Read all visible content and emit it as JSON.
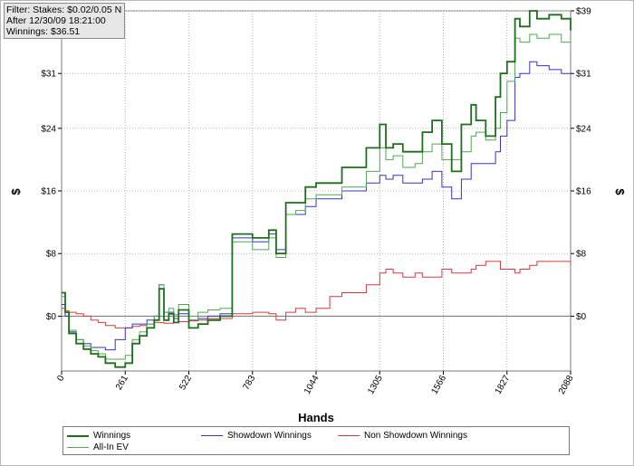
{
  "filter_box": {
    "line1": "Filter: Stakes: $0.02/0.05 NL",
    "line2": "After 12/30/09 18:21:00",
    "line3": "Winnings: $36.51"
  },
  "colors": {
    "winnings": "#1e6e1e",
    "showdown": "#3434c8",
    "non_showdown": "#d23c3c",
    "all_in_ev": "#52a652",
    "zero_line": "#707070",
    "grid": "#b4b4b4"
  },
  "chart_data": {
    "type": "line",
    "xlabel": "Hands",
    "ylabel_left": "$",
    "ylabel_right": "$",
    "xlim": [
      0,
      2088
    ],
    "ylim": [
      -7,
      39
    ],
    "x_ticks": [
      0,
      261,
      522,
      783,
      1044,
      1305,
      1566,
      1827,
      2088
    ],
    "y_ticks": [
      {
        "value": 0,
        "label": "$0"
      },
      {
        "value": 8,
        "label": "$8"
      },
      {
        "value": 16,
        "label": "$16"
      },
      {
        "value": 24,
        "label": "$24"
      },
      {
        "value": 31,
        "label": "$31"
      },
      {
        "value": 39,
        "label": "$39"
      }
    ],
    "grid": "dotted",
    "legend_position": "bottom",
    "series": [
      {
        "name": "Winnings",
        "color_key": "winnings",
        "x": [
          0,
          15,
          30,
          60,
          90,
          120,
          150,
          180,
          220,
          261,
          290,
          320,
          350,
          380,
          400,
          420,
          440,
          460,
          480,
          522,
          560,
          600,
          650,
          700,
          740,
          783,
          850,
          880,
          920,
          960,
          1000,
          1044,
          1100,
          1150,
          1200,
          1250,
          1305,
          1330,
          1360,
          1400,
          1450,
          1480,
          1520,
          1560,
          1600,
          1640,
          1680,
          1700,
          1740,
          1780,
          1800,
          1827,
          1860,
          1880,
          1920,
          1950,
          2000,
          2050,
          2088
        ],
        "y": [
          3,
          0.5,
          -2.2,
          -3.5,
          -4.2,
          -4.8,
          -5.2,
          -6.0,
          -6.5,
          -6.0,
          -3.5,
          -2.5,
          -1.5,
          -0.5,
          3.5,
          -0.5,
          0.3,
          -0.8,
          0.8,
          -1.5,
          -1.0,
          -0.5,
          0.0,
          10.5,
          10.5,
          10.0,
          11.0,
          8.0,
          14.5,
          14.5,
          16.5,
          17.0,
          17.0,
          19.0,
          19.0,
          21.5,
          24.5,
          21.5,
          22.0,
          21.0,
          21.0,
          23.5,
          25.0,
          22.0,
          18.5,
          24.5,
          27.0,
          25.0,
          23.0,
          28.0,
          31.0,
          32.5,
          38.0,
          37.0,
          39.0,
          38.0,
          38.5,
          38.0,
          36.5
        ]
      },
      {
        "name": "Showdown Winnings",
        "color_key": "showdown",
        "x": [
          0,
          15,
          30,
          60,
          90,
          120,
          150,
          180,
          220,
          261,
          290,
          320,
          350,
          380,
          400,
          420,
          440,
          460,
          480,
          522,
          560,
          600,
          650,
          700,
          740,
          783,
          850,
          880,
          920,
          960,
          1000,
          1044,
          1100,
          1150,
          1200,
          1250,
          1305,
          1330,
          1360,
          1400,
          1450,
          1480,
          1520,
          1560,
          1600,
          1640,
          1680,
          1700,
          1740,
          1780,
          1800,
          1827,
          1860,
          1880,
          1920,
          1950,
          2000,
          2050,
          2088
        ],
        "y": [
          1.5,
          0.0,
          -2.0,
          -3.0,
          -3.5,
          -4.0,
          -4.0,
          -4.3,
          -3.0,
          -1.5,
          -1.0,
          -1.0,
          -0.5,
          0.0,
          4.0,
          0.5,
          0.5,
          -0.3,
          0.3,
          -0.5,
          -0.3,
          0.0,
          0.3,
          10.0,
          10.0,
          9.5,
          10.5,
          8.5,
          13.0,
          13.0,
          14.0,
          15.0,
          15.0,
          16.0,
          16.0,
          17.0,
          18.0,
          17.5,
          18.0,
          17.0,
          17.0,
          17.5,
          18.5,
          16.5,
          15.0,
          17.5,
          19.5,
          19.5,
          19.5,
          21.0,
          23.0,
          25.0,
          30.5,
          31.0,
          32.5,
          32.0,
          31.5,
          31.0,
          31.0
        ]
      },
      {
        "name": "Non Showdown Winnings",
        "color_key": "non_showdown",
        "x": [
          0,
          15,
          30,
          60,
          90,
          120,
          150,
          180,
          220,
          261,
          290,
          320,
          350,
          380,
          400,
          420,
          440,
          460,
          480,
          522,
          560,
          600,
          650,
          700,
          740,
          783,
          850,
          880,
          920,
          960,
          1000,
          1044,
          1100,
          1150,
          1200,
          1250,
          1305,
          1330,
          1360,
          1400,
          1450,
          1480,
          1520,
          1560,
          1600,
          1640,
          1680,
          1700,
          1740,
          1780,
          1800,
          1827,
          1860,
          1880,
          1920,
          1950,
          2000,
          2050,
          2088
        ],
        "y": [
          1.0,
          0.7,
          0.5,
          0.3,
          0.0,
          -0.5,
          -0.8,
          -1.2,
          -1.5,
          -1.5,
          -1.3,
          -1.2,
          -1.0,
          -0.8,
          -0.8,
          -0.9,
          -0.9,
          -0.8,
          -0.7,
          -0.6,
          -0.5,
          -0.3,
          -0.3,
          0.3,
          0.3,
          0.5,
          0.3,
          -0.5,
          0.5,
          1.0,
          0.5,
          1.0,
          2.5,
          3.0,
          3.0,
          4.0,
          5.5,
          6.0,
          5.5,
          5.0,
          5.5,
          5.0,
          5.0,
          6.0,
          5.5,
          5.5,
          6.0,
          6.5,
          7.0,
          7.0,
          6.0,
          6.0,
          5.5,
          6.0,
          6.5,
          7.0,
          7.0,
          7.0,
          6.5
        ]
      },
      {
        "name": "All-In EV",
        "color_key": "all_in_ev",
        "x": [
          0,
          15,
          30,
          60,
          90,
          120,
          150,
          180,
          220,
          261,
          290,
          320,
          350,
          380,
          400,
          420,
          440,
          460,
          480,
          522,
          560,
          600,
          650,
          700,
          740,
          783,
          850,
          880,
          920,
          960,
          1000,
          1044,
          1100,
          1150,
          1200,
          1250,
          1305,
          1330,
          1360,
          1400,
          1450,
          1480,
          1520,
          1560,
          1600,
          1640,
          1680,
          1700,
          1740,
          1780,
          1800,
          1827,
          1860,
          1880,
          1920,
          1950,
          2000,
          2050,
          2088
        ],
        "y": [
          2.5,
          0.5,
          -1.8,
          -3.0,
          -3.8,
          -4.4,
          -4.8,
          -5.5,
          -5.5,
          -5.0,
          -3.0,
          -2.0,
          -1.0,
          0.0,
          4.0,
          0.5,
          1.0,
          0.2,
          1.5,
          -0.5,
          0.5,
          0.8,
          1.0,
          9.5,
          9.5,
          8.5,
          10.0,
          7.5,
          13.0,
          13.5,
          15.0,
          15.5,
          15.5,
          16.5,
          16.5,
          18.5,
          21.5,
          20.0,
          20.5,
          19.0,
          19.5,
          21.0,
          22.0,
          20.0,
          20.0,
          21.0,
          23.0,
          23.5,
          22.5,
          24.0,
          26.0,
          30.0,
          35.5,
          35.0,
          36.0,
          35.5,
          36.0,
          35.0,
          34.0
        ]
      }
    ]
  },
  "legend": {
    "winnings": "Winnings",
    "showdown": "Showdown Winnings",
    "non_showdown": "Non Showdown Winnings",
    "all_in_ev": "All-In EV"
  }
}
